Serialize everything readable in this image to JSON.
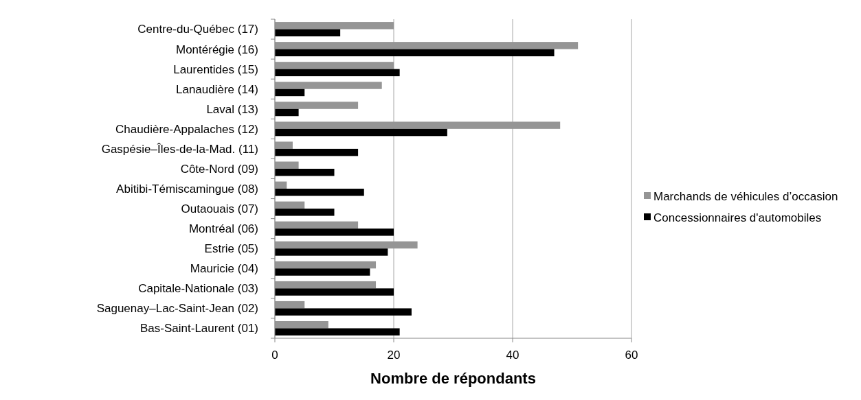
{
  "chart_data": {
    "type": "bar",
    "orientation": "horizontal",
    "xlabel": "Nombre de répondants",
    "categories": [
      "Centre-du-Québec (17)",
      "Montérégie (16)",
      "Laurentides (15)",
      "Lanaudière (14)",
      "Laval (13)",
      "Chaudière-Appalaches (12)",
      "Gaspésie–Îles-de-la-Mad. (11)",
      "Côte-Nord (09)",
      "Abitibi-Témiscamingue (08)",
      "Outaouais (07)",
      "Montréal (06)",
      "Estrie (05)",
      "Mauricie (04)",
      "Capitale-Nationale (03)",
      "Saguenay–Lac-Saint-Jean (02)",
      "Bas-Saint-Laurent (01)"
    ],
    "series": [
      {
        "name": "Marchands de véhicules d’occasion",
        "color": "#959595",
        "values": [
          20,
          51,
          20,
          18,
          14,
          48,
          3,
          4,
          2,
          5,
          14,
          24,
          17,
          17,
          5,
          9
        ]
      },
      {
        "name": "Concessionnaires d'automobiles",
        "color": "#000000",
        "values": [
          11,
          47,
          21,
          5,
          4,
          29,
          14,
          10,
          15,
          10,
          20,
          19,
          16,
          20,
          23,
          21
        ]
      }
    ],
    "xlim": [
      0,
      60
    ],
    "xticks": [
      0,
      20,
      40,
      60
    ],
    "grid": "x",
    "legend": "right"
  }
}
